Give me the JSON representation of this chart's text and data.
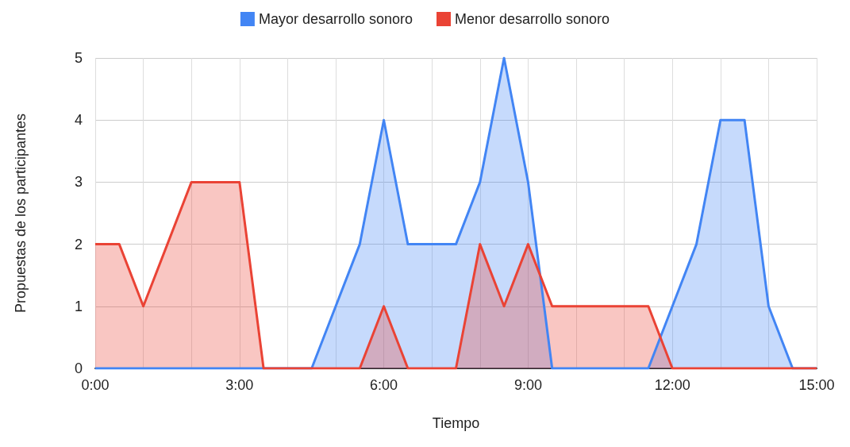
{
  "chart_data": {
    "type": "area",
    "xlabel": "Tiempo",
    "ylabel": "Propuestas de los participantes",
    "x": [
      0,
      0.5,
      1,
      1.5,
      2,
      2.5,
      3,
      3.5,
      4,
      4.5,
      5,
      5.5,
      6,
      6.5,
      7,
      7.5,
      8,
      8.5,
      9,
      9.5,
      10,
      10.5,
      11,
      11.5,
      12,
      12.5,
      13,
      13.5,
      14,
      14.5,
      15
    ],
    "series": [
      {
        "name": "Mayor desarrollo sonoro",
        "color": "#4285f4",
        "values": [
          0,
          0,
          0,
          0,
          0,
          0,
          0,
          0,
          0,
          0,
          1,
          2,
          4,
          2,
          2,
          2,
          3,
          5,
          3,
          0,
          0,
          0,
          0,
          0,
          1,
          2,
          4,
          4,
          1,
          0,
          0
        ]
      },
      {
        "name": "Menor desarrollo sonoro",
        "color": "#ea4335",
        "values": [
          2,
          2,
          1,
          2,
          3,
          3,
          3,
          0,
          0,
          0,
          0,
          0,
          1,
          0,
          0,
          0,
          2,
          1,
          2,
          1,
          1,
          1,
          1,
          1,
          0,
          0,
          0,
          0,
          0,
          0,
          0
        ]
      }
    ],
    "xlim": [
      0,
      15
    ],
    "xticks": [
      {
        "value": 0,
        "label": "0:00"
      },
      {
        "value": 1,
        "label": null
      },
      {
        "value": 2,
        "label": null
      },
      {
        "value": 3,
        "label": "3:00"
      },
      {
        "value": 4,
        "label": null
      },
      {
        "value": 5,
        "label": null
      },
      {
        "value": 6,
        "label": "6:00"
      },
      {
        "value": 7,
        "label": null
      },
      {
        "value": 8,
        "label": null
      },
      {
        "value": 9,
        "label": "9:00"
      },
      {
        "value": 10,
        "label": null
      },
      {
        "value": 11,
        "label": null
      },
      {
        "value": 12,
        "label": "12:00"
      },
      {
        "value": 13,
        "label": null
      },
      {
        "value": 14,
        "label": null
      },
      {
        "value": 15,
        "label": "15:00"
      }
    ],
    "ylim": [
      0,
      5
    ],
    "yticks": [
      0,
      1,
      2,
      3,
      4,
      5
    ],
    "grid": true,
    "legend": "top",
    "marker": "none",
    "line_style": "solid"
  }
}
